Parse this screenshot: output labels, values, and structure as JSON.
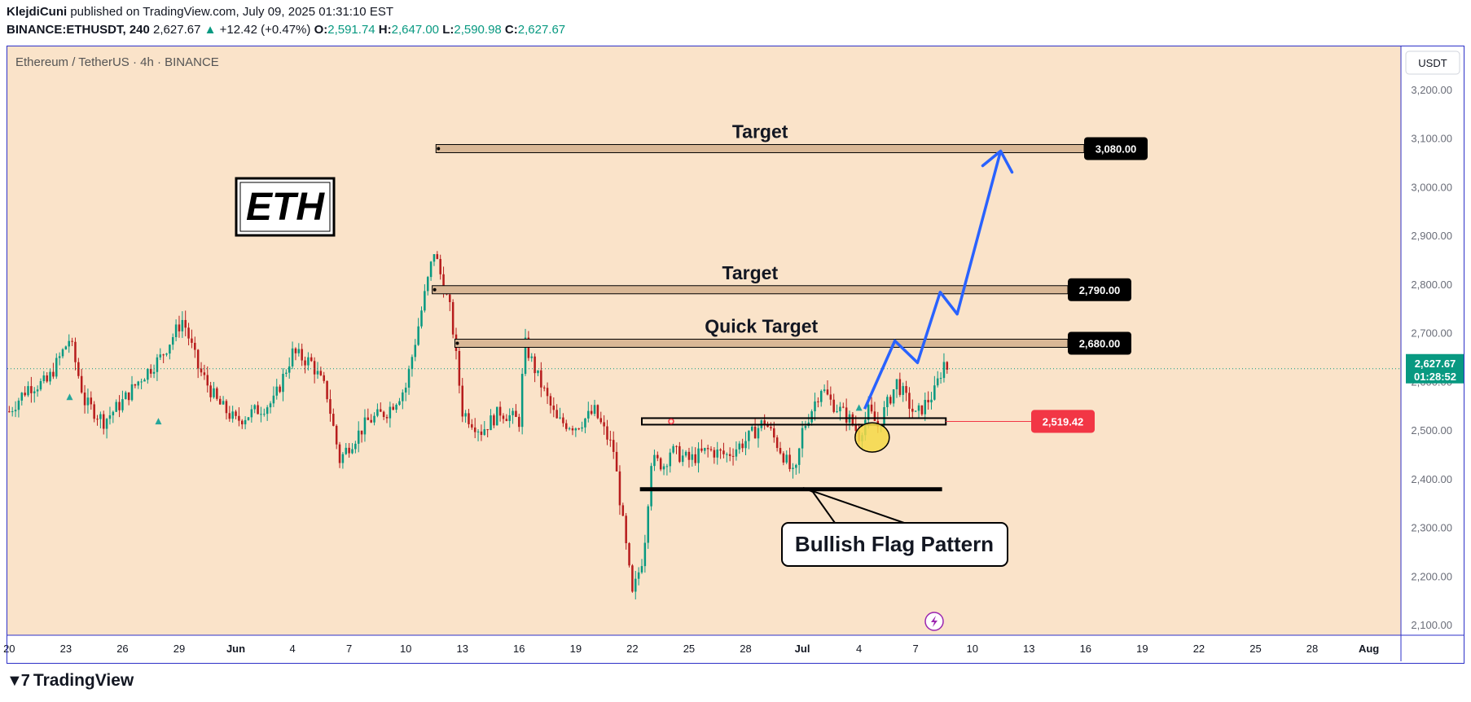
{
  "header": {
    "author": "KlejdiCuni",
    "published_text": "published on TradingView.com, July 09, 2025 01:31:10 EST",
    "symbol": "BINANCE:ETHUSDT, 240",
    "last": "2,627.67",
    "change_arrow": "▲",
    "change": "+12.42 (+0.47%)",
    "o_label": "O:",
    "o": "2,591.74",
    "h_label": "H:",
    "h": "2,647.00",
    "l_label": "L:",
    "l": "2,590.98",
    "c_label": "C:",
    "c": "2,627.67"
  },
  "chart_title": "Ethereum / TetherUS · 4h · BINANCE",
  "currency_button": "USDT",
  "footer_brand": "TradingView",
  "footer_logo_icon": "tradingview-logo-icon",
  "colors": {
    "background": "#fae3c9",
    "up": "#089981",
    "down": "#b71c1c",
    "zone_fill": "#d9b896",
    "projection": "#2962ff",
    "price_label_bg": "#089981",
    "red_label_bg": "#f23645",
    "frame": "#2d31c8",
    "highlight": "#f5d947"
  },
  "chart_data": {
    "type": "candlestick",
    "title": "Ethereum / TetherUS · 4h · BINANCE",
    "ylim": [
      2080,
      3290
    ],
    "y_ticks": [
      "3,200.00",
      "3,100.00",
      "3,000.00",
      "2,900.00",
      "2,800.00",
      "2,700.00",
      "2,600.00",
      "2,500.00",
      "2,400.00",
      "2,300.00",
      "2,200.00",
      "2,100.00"
    ],
    "y_tick_values": [
      3200,
      3100,
      3000,
      2900,
      2800,
      2700,
      2600,
      2500,
      2400,
      2300,
      2200,
      2100
    ],
    "x_ticks": [
      "20",
      "23",
      "26",
      "29",
      "Jun",
      "4",
      "7",
      "10",
      "13",
      "16",
      "19",
      "22",
      "25",
      "28",
      "Jul",
      "4",
      "7",
      "10",
      "13",
      "16",
      "19",
      "22",
      "25",
      "28",
      "Aug"
    ],
    "x_tick_days": [
      0,
      3,
      6,
      9,
      12,
      15,
      18,
      21,
      24,
      27,
      30,
      33,
      36,
      39,
      42,
      45,
      48,
      51,
      54,
      57,
      60,
      63,
      66,
      69,
      72
    ],
    "x_day_range": [
      -0.1,
      73.7
    ],
    "series": {
      "close_anchors_day": [
        0,
        1,
        2,
        3.2,
        4,
        5,
        6,
        7,
        8,
        9.2,
        10,
        11,
        12,
        13,
        14,
        15,
        16,
        16.8,
        17.5,
        18,
        19,
        20,
        21,
        21.9,
        22.5,
        23.4,
        24,
        25,
        26,
        27,
        27.3,
        28,
        29,
        30,
        31,
        32,
        33,
        33.6,
        34,
        34.7,
        35,
        36,
        37,
        38,
        39,
        40,
        41,
        41.6,
        42,
        43,
        43.5,
        44.6,
        45,
        45.5,
        46,
        47,
        48,
        49,
        49.5,
        49.7
      ],
      "close_anchors_price": [
        2540,
        2590,
        2600,
        2690,
        2560,
        2520,
        2560,
        2610,
        2650,
        2730,
        2630,
        2560,
        2520,
        2540,
        2560,
        2660,
        2640,
        2580,
        2440,
        2470,
        2520,
        2540,
        2590,
        2760,
        2870,
        2740,
        2540,
        2500,
        2540,
        2520,
        2680,
        2610,
        2520,
        2510,
        2540,
        2460,
        2160,
        2250,
        2440,
        2430,
        2460,
        2440,
        2460,
        2450,
        2480,
        2520,
        2450,
        2400,
        2500,
        2590,
        2560,
        2520,
        2490,
        2540,
        2510,
        2600,
        2530,
        2580,
        2640,
        2628
      ]
    },
    "levels": [
      {
        "label": "Target",
        "price": 3080,
        "price_label": "3,080.00",
        "from_day": 22.6
      },
      {
        "label": "Target",
        "price": 2790,
        "price_label": "2,790.00",
        "from_day": 22.4
      },
      {
        "label": "Quick Target",
        "price": 2680,
        "price_label": "2,680.00",
        "from_day": 23.6
      }
    ],
    "flag_top": {
      "price": 2519.42,
      "price_label": "2,519.42",
      "from_day": 33.5,
      "to_day": 49.6
    },
    "flag_bottom": {
      "price": 2380,
      "from_day": 33.4,
      "to_day": 49.4
    },
    "current_price_label": "2,627.67",
    "current_price": 2627.67,
    "countdown": "01:28:52",
    "projection_path_days": [
      45.3,
      46.9,
      48.1,
      49.3,
      50.2,
      52.5
    ],
    "projection_path_prices": [
      2545,
      2685,
      2640,
      2785,
      2740,
      3075
    ],
    "annotations": {
      "badge": "ETH",
      "callout": "Bullish Flag Pattern",
      "highlight_ellipse_day": 45.7,
      "highlight_ellipse_price": 2510
    },
    "event_icon": "lightning-icon"
  }
}
